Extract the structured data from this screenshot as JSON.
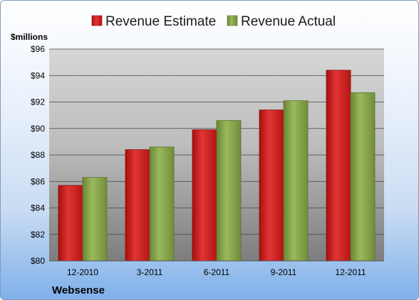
{
  "chart_data": {
    "type": "bar",
    "categories": [
      "12-2010",
      "3-2011",
      "6-2011",
      "9-2011",
      "12-2011"
    ],
    "series": [
      {
        "name": "Revenue Estimate",
        "values": [
          85.7,
          88.4,
          89.9,
          91.4,
          94.4
        ],
        "color": "#d32020"
      },
      {
        "name": "Revenue Actual",
        "values": [
          86.3,
          88.6,
          90.6,
          92.1,
          92.7
        ],
        "color": "#86a34c"
      }
    ],
    "ylabel": "$millions",
    "ylim": [
      80,
      96
    ],
    "yticks": [
      "$80",
      "$82",
      "$84",
      "$86",
      "$88",
      "$90",
      "$92",
      "$94",
      "$96"
    ],
    "yticks_values": [
      80,
      82,
      84,
      86,
      88,
      90,
      92,
      94,
      96
    ],
    "grid": true,
    "legend": "top"
  },
  "company_label": "Websense"
}
